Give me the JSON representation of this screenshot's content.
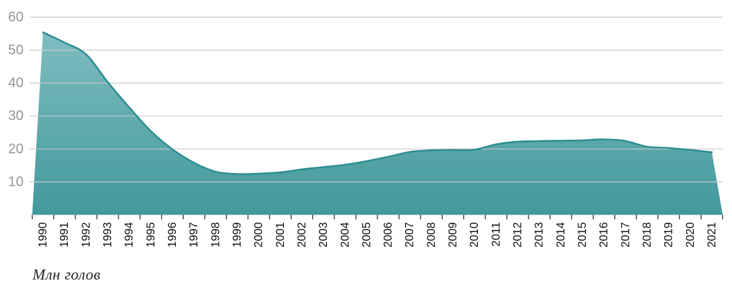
{
  "chart_data": {
    "type": "area",
    "title": "",
    "caption": "Млн голов",
    "xlabel": "",
    "ylabel": "Млн голов",
    "categories": [
      "1990",
      "1991",
      "1992",
      "1993",
      "1994",
      "1995",
      "1996",
      "1997",
      "1998",
      "1999",
      "2000",
      "2001",
      "2002",
      "2003",
      "2004",
      "2005",
      "2006",
      "2007",
      "2008",
      "2009",
      "2010",
      "2011",
      "2012",
      "2013",
      "2014",
      "2015",
      "2016",
      "2017",
      "2018",
      "2019",
      "2020",
      "2021"
    ],
    "values": [
      55.4,
      52.3,
      48.7,
      40.3,
      32.6,
      25.4,
      19.9,
      15.8,
      13.1,
      12.4,
      12.5,
      12.9,
      13.8,
      14.5,
      15.2,
      16.3,
      17.6,
      19.1,
      19.6,
      19.7,
      19.8,
      21.4,
      22.2,
      22.4,
      22.5,
      22.6,
      22.9,
      22.4,
      20.7,
      20.3,
      19.7,
      19.0
    ],
    "y_ticks": [
      10,
      20,
      30,
      40,
      50,
      60
    ],
    "ylim": [
      0,
      60
    ],
    "grid": true,
    "legend": "none",
    "colors": {
      "line": "#2e8f91",
      "fill_top": "#7fbdbf",
      "fill_bottom": "#42999c",
      "grid_line": "#c9c9c9",
      "y_label": "#959595",
      "x_label": "#111111",
      "tick": "#222222"
    }
  }
}
